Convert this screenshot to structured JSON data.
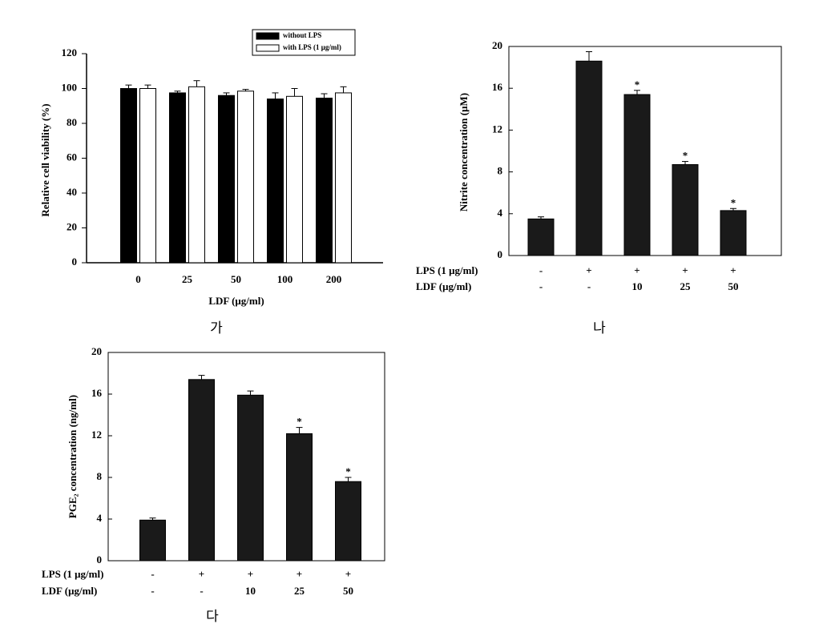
{
  "chart_data": [
    {
      "type": "bar",
      "caption": "가",
      "y_label": "Relative cell viability (%)",
      "x_label": "LDF (μg/ml)",
      "categories": [
        "0",
        "25",
        "50",
        "100",
        "200"
      ],
      "series": [
        {
          "name": "without LPS",
          "color": "#000000",
          "values": [
            100,
            97.5,
            96,
            94,
            94.5
          ],
          "errors": [
            2,
            1,
            1.5,
            3.5,
            2.5
          ]
        },
        {
          "name": "with LPS (1 μg/ml)",
          "color": "#ffffff",
          "values": [
            100,
            101,
            98.5,
            95.5,
            97.5
          ],
          "errors": [
            2,
            3.5,
            1,
            4.5,
            3.5
          ]
        }
      ],
      "ylim": [
        0,
        120
      ],
      "yticks": [
        0,
        20,
        40,
        60,
        80,
        100,
        120
      ],
      "frame": false
    },
    {
      "type": "bar",
      "caption": "나",
      "y_label": "Nitrite concentration (μM)",
      "category_rows": [
        {
          "label": "LPS (1 μg/ml)",
          "values": [
            "-",
            "+",
            "+",
            "+",
            "+"
          ]
        },
        {
          "label": "LDF (μg/ml)",
          "values": [
            "-",
            "-",
            "10",
            "25",
            "50"
          ]
        }
      ],
      "series": [
        {
          "color": "#1a1a1a",
          "values": [
            3.5,
            18.6,
            15.4,
            8.7,
            4.3
          ],
          "errors": [
            0.2,
            0.9,
            0.4,
            0.3,
            0.2
          ],
          "significance": [
            null,
            null,
            "*",
            "*",
            "*"
          ]
        }
      ],
      "ylim": [
        0,
        20
      ],
      "yticks": [
        0,
        4,
        8,
        12,
        16,
        20
      ],
      "frame": true
    },
    {
      "type": "bar",
      "caption": "다",
      "y_label": "PGE₂ concentration (ng/ml)",
      "category_rows": [
        {
          "label": "LPS (1 μg/ml)",
          "values": [
            "-",
            "+",
            "+",
            "+",
            "+"
          ]
        },
        {
          "label": "LDF (μg/ml)",
          "values": [
            "-",
            "-",
            "10",
            "25",
            "50"
          ]
        }
      ],
      "series": [
        {
          "color": "#1a1a1a",
          "values": [
            3.9,
            17.4,
            15.9,
            12.2,
            7.6
          ],
          "errors": [
            0.2,
            0.4,
            0.4,
            0.6,
            0.4
          ],
          "significance": [
            null,
            null,
            null,
            "*",
            "*"
          ]
        }
      ],
      "ylim": [
        0,
        20
      ],
      "yticks": [
        0,
        4,
        8,
        12,
        16,
        20
      ],
      "frame": true
    }
  ]
}
